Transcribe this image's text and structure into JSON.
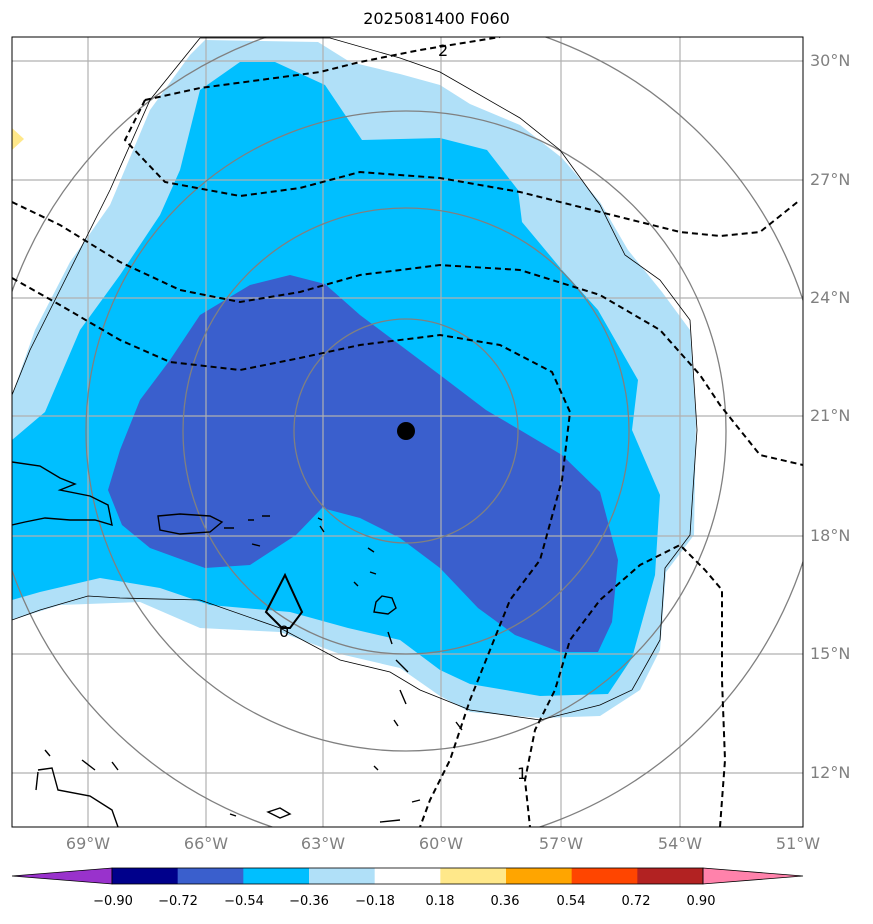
{
  "title": "2025081400 F060",
  "lat_labels": [
    "30°N",
    "27°N",
    "24°N",
    "21°N",
    "18°N",
    "15°N",
    "12°N"
  ],
  "lon_labels": [
    "69°W",
    "66°W",
    "63°W",
    "60°W",
    "57°W",
    "54°W",
    "51°W"
  ],
  "contour_labels": [
    "2",
    "0",
    "1"
  ],
  "colorbar": {
    "ticks": [
      "−0.90",
      "−0.72",
      "−0.54",
      "−0.36",
      "−0.18",
      "0.18",
      "0.36",
      "0.54",
      "0.72",
      "0.90"
    ],
    "colors": [
      "#9932cc",
      "#00008b",
      "#3a5fcd",
      "#00bfff",
      "#b0e0f8",
      "#ffffff",
      "#ffe88a",
      "#ffa500",
      "#ff4500",
      "#b22222",
      "#ff82ab"
    ]
  },
  "colors": {
    "shade_light": "#b0e0f8",
    "shade_mid": "#00bfff",
    "shade_dark": "#3a5fcd",
    "rings": "#808080",
    "grid": "#b0b0b0",
    "storm_center": "#000000"
  }
}
